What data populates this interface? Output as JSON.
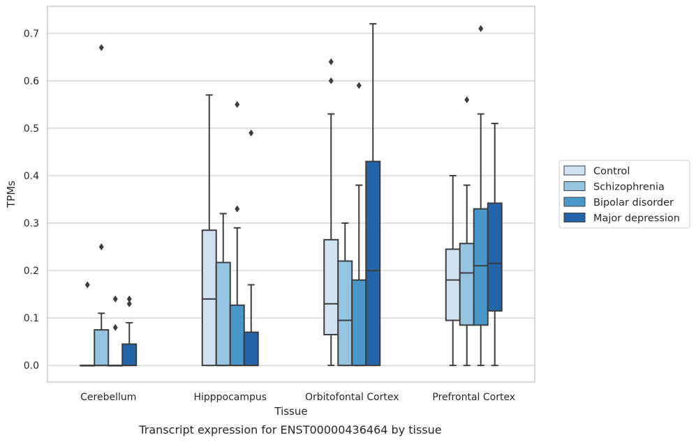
{
  "chart_data": {
    "type": "boxplot",
    "title": "",
    "caption": "Transcript expression for ENST00000436464 by tissue",
    "xlabel": "Tissue",
    "ylabel": "TPMs",
    "ylim": [
      -0.035,
      0.757
    ],
    "yticks": [
      0.0,
      0.1,
      0.2,
      0.3,
      0.4,
      0.5,
      0.6,
      0.7
    ],
    "ytick_labels": [
      "0.0",
      "0.1",
      "0.2",
      "0.3",
      "0.4",
      "0.5",
      "0.6",
      "0.7"
    ],
    "grid": "horizontal",
    "legend_placement": "right",
    "categories": [
      "Cerebellum",
      "Hipppocampus",
      "Orbitofontal Cortex",
      "Prefrontal Cortex"
    ],
    "series": [
      {
        "name": "Control",
        "color": "#d0e1f2",
        "boxes": [
          {
            "q1": 0.0,
            "median": 0.0,
            "q3": 0.0,
            "whislo": 0.0,
            "whishi": 0.0,
            "fliers": [
              0.17
            ]
          },
          {
            "q1": 0.0,
            "median": 0.14,
            "q3": 0.285,
            "whislo": 0.0,
            "whishi": 0.57,
            "fliers": []
          },
          {
            "q1": 0.065,
            "median": 0.13,
            "q3": 0.265,
            "whislo": 0.0,
            "whishi": 0.53,
            "fliers": []
          },
          {
            "q1": 0.095,
            "median": 0.18,
            "q3": 0.245,
            "whislo": 0.0,
            "whishi": 0.4,
            "fliers": []
          }
        ]
      },
      {
        "name": "Schizophrenia",
        "color": "#94c4df",
        "boxes": [
          {
            "q1": 0.0,
            "median": 0.0,
            "q3": 0.075,
            "whislo": 0.0,
            "whishi": 0.11,
            "fliers": [
              0.25,
              0.67
            ]
          },
          {
            "q1": 0.0,
            "median": 0.0,
            "q3": 0.217,
            "whislo": 0.0,
            "whishi": 0.32,
            "fliers": []
          },
          {
            "q1": 0.0,
            "median": 0.095,
            "q3": 0.22,
            "whislo": 0.0,
            "whishi": 0.3,
            "fliers": []
          },
          {
            "q1": 0.085,
            "median": 0.195,
            "q3": 0.257,
            "whislo": 0.0,
            "whishi": 0.38,
            "fliers": [
              0.56
            ]
          }
        ]
      },
      {
        "name": "Bipolar disorder",
        "color": "#4a98c9",
        "boxes": [
          {
            "q1": 0.0,
            "median": 0.0,
            "q3": 0.0,
            "whislo": 0.0,
            "whishi": 0.0,
            "fliers": [
              0.08,
              0.14
            ]
          },
          {
            "q1": 0.0,
            "median": 0.0,
            "q3": 0.127,
            "whislo": 0.0,
            "whishi": 0.29,
            "fliers": [
              0.33,
              0.55
            ]
          },
          {
            "q1": 0.0,
            "median": 0.0,
            "q3": 0.18,
            "whislo": 0.0,
            "whishi": 0.38,
            "fliers": [
              0.59
            ]
          },
          {
            "q1": 0.085,
            "median": 0.21,
            "q3": 0.33,
            "whislo": 0.0,
            "whishi": 0.53,
            "fliers": [
              0.71
            ]
          }
        ]
      },
      {
        "name": "Major depression",
        "color": "#2464a8",
        "boxes": [
          {
            "q1": 0.0,
            "median": 0.0,
            "q3": 0.045,
            "whislo": 0.0,
            "whishi": 0.09,
            "fliers": [
              0.13,
              0.14
            ]
          },
          {
            "q1": 0.0,
            "median": 0.0,
            "q3": 0.07,
            "whislo": 0.0,
            "whishi": 0.17,
            "fliers": [
              0.49
            ]
          },
          {
            "q1": 0.0,
            "median": 0.2,
            "q3": 0.43,
            "whislo": 0.0,
            "whishi": 0.72,
            "fliers": []
          },
          {
            "q1": 0.115,
            "median": 0.215,
            "q3": 0.342,
            "whislo": 0.0,
            "whishi": 0.51,
            "fliers": []
          }
        ]
      }
    ],
    "extra_fliers": [
      {
        "category_index": 2,
        "series_index": 0,
        "values": [
          0.6,
          0.64
        ]
      }
    ]
  }
}
